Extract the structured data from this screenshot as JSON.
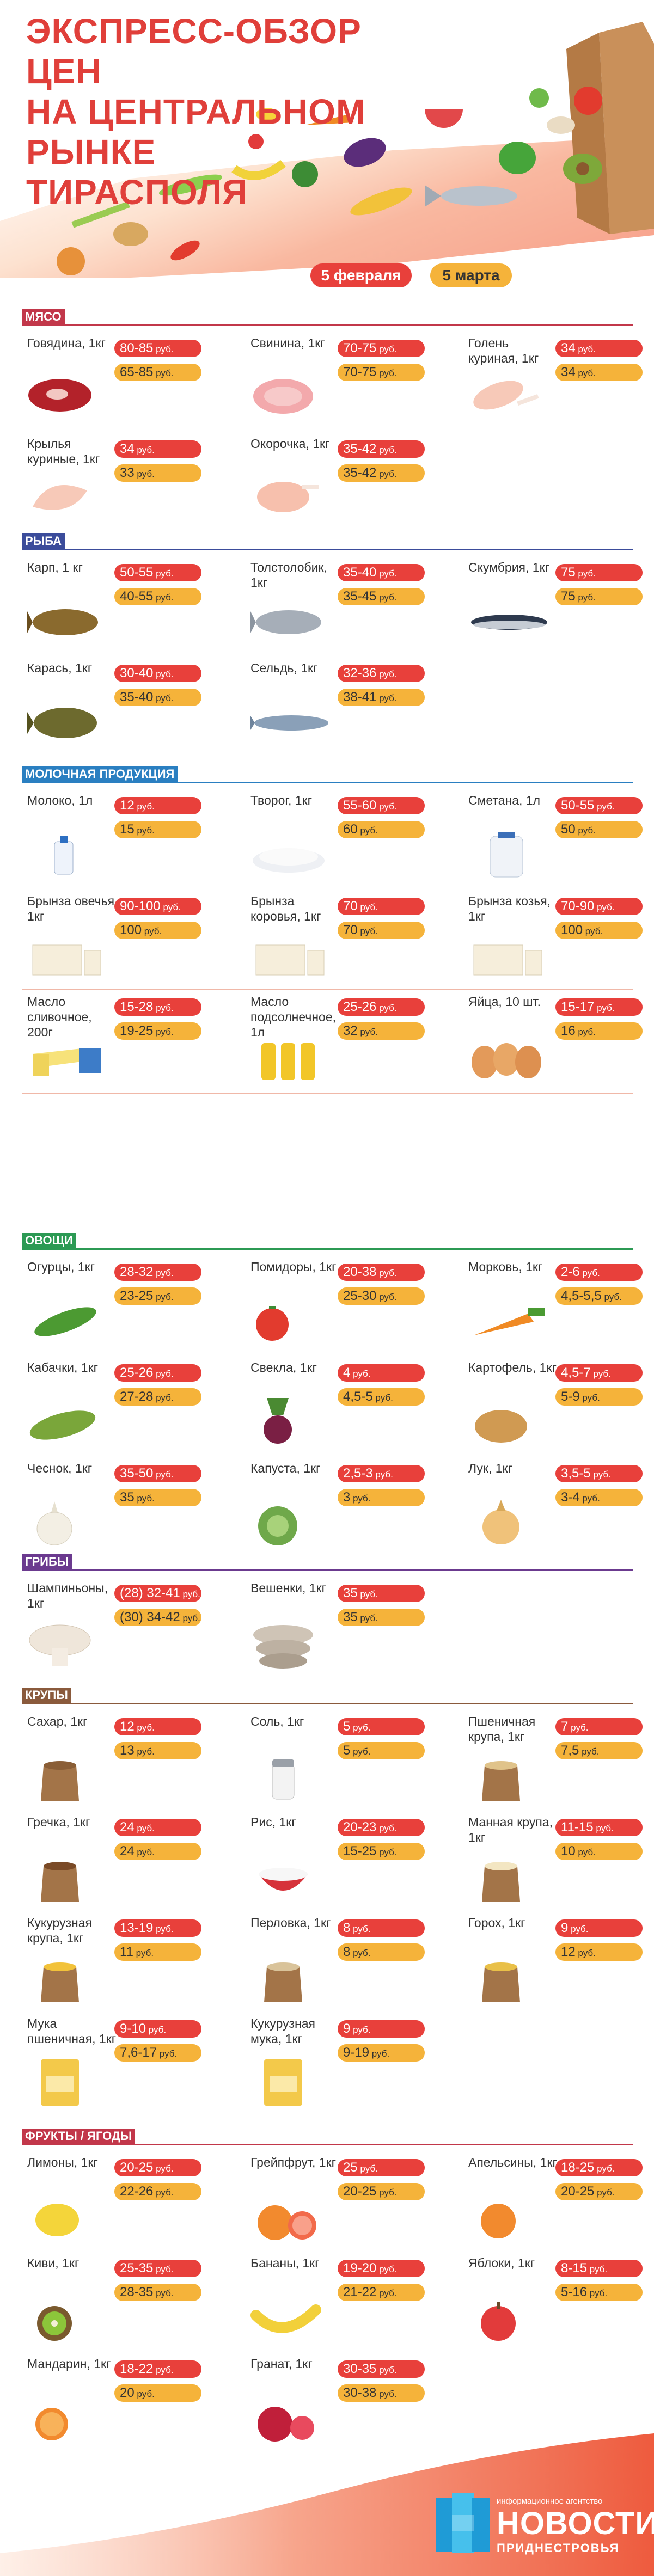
{
  "title": [
    "ЭКСПРЕСС-ОБЗОР ЦЕН",
    "НА ЦЕНТРАЛЬНОМ РЫНКЕ",
    "ТИРАСПОЛЯ"
  ],
  "dates": {
    "current": "5 февраля",
    "previous": "5 марта"
  },
  "colors": {
    "new_price": "#e8403b",
    "old_price": "#f5b33a"
  },
  "sections": [
    {
      "label": "МЯСО",
      "color": "#c2374a",
      "items": [
        {
          "name": "Говядина, 1кг",
          "new": "80-85",
          "old": "65-85",
          "unit": " руб.",
          "icon": "beef-icon"
        },
        {
          "name": "Свинина, 1кг",
          "new": "70-75",
          "old": "70-75",
          "unit": " руб.",
          "icon": "pork-icon"
        },
        {
          "name": "Голень куриная, 1кг",
          "new": "34",
          "old": "34",
          "unit": " руб.",
          "icon": "chicken-leg-icon"
        },
        {
          "name": "Крылья куриные, 1кг",
          "new": "34",
          "old": "33",
          "unit": " руб.",
          "icon": "chicken-wings-icon"
        },
        {
          "name": "Окорочка, 1кг",
          "new": "35-42",
          "old": "35-42",
          "unit": " руб.",
          "icon": "chicken-thigh-icon"
        }
      ]
    },
    {
      "label": "РЫБА",
      "color": "#3b4c9b",
      "items": [
        {
          "name": "Карп, 1 кг",
          "new": "50-55",
          "old": "40-55",
          "unit": " руб.",
          "icon": "carp-icon"
        },
        {
          "name": "Толстолобик, 1кг",
          "new": "35-40",
          "old": "35-45",
          "unit": " руб.",
          "icon": "silver-carp-icon"
        },
        {
          "name": "Скумбрия, 1кг",
          "new": "75",
          "old": "75",
          "unit": " руб.",
          "icon": "mackerel-icon"
        },
        {
          "name": "Карась, 1кг",
          "new": "30-40",
          "old": "35-40",
          "unit": " руб.",
          "icon": "crucian-icon"
        },
        {
          "name": "Сельдь, 1кг",
          "new": "32-36",
          "old": "38-41",
          "unit": " руб.",
          "icon": "herring-icon"
        }
      ]
    },
    {
      "label": "МОЛОЧНАЯ ПРОДУКЦИЯ",
      "color": "#2a7fc1",
      "items": [
        {
          "name": "Молоко, 1л",
          "new": "12",
          "old": "15",
          "unit": " руб.",
          "icon": "milk-icon"
        },
        {
          "name": "Творог, 1кг",
          "new": "55-60",
          "old": "60",
          "unit": " руб.",
          "icon": "cottage-cheese-icon"
        },
        {
          "name": "Сметана, 1л",
          "new": "50-55",
          "old": "50",
          "unit": " руб.",
          "icon": "sour-cream-icon"
        },
        {
          "name": "Брынза овечья, 1кг",
          "new": "90-100",
          "old": "100",
          "unit": " руб.",
          "icon": "sheep-cheese-icon"
        },
        {
          "name": "Брынза коровья, 1кг",
          "new": "70",
          "old": "70",
          "unit": " руб.",
          "icon": "cow-cheese-icon"
        },
        {
          "name": "Брынза козья, 1кг",
          "new": "70-90",
          "old": "100",
          "unit": " руб.",
          "icon": "goat-cheese-icon"
        },
        {
          "name": "Масло сливочное, 200г",
          "new": "15-28",
          "old": "19-25",
          "unit": " руб.",
          "icon": "butter-icon"
        },
        {
          "name": "Масло подсолнечное, 1л",
          "new": "25-26",
          "old": "32",
          "unit": " руб.",
          "icon": "sunflower-oil-icon"
        },
        {
          "name": "Яйца, 10 шт.",
          "new": "15-17",
          "old": "16",
          "unit": " руб.",
          "icon": "eggs-icon"
        }
      ]
    },
    {
      "label": "ОВОЩИ",
      "color": "#2c9a54",
      "items": [
        {
          "name": "Огурцы, 1кг",
          "new": "28-32",
          "old": "23-25",
          "unit": " руб.",
          "icon": "cucumber-icon"
        },
        {
          "name": "Помидоры, 1кг",
          "new": "20-38",
          "old": "25-30",
          "unit": " руб.",
          "icon": "tomato-icon"
        },
        {
          "name": "Морковь, 1кг",
          "new": "2-6",
          "old": "4,5-5,5",
          "unit": " руб.",
          "icon": "carrot-icon"
        },
        {
          "name": "Кабачки, 1кг",
          "new": "25-26",
          "old": "27-28",
          "unit": " руб.",
          "icon": "zucchini-icon"
        },
        {
          "name": "Свекла, 1кг",
          "new": "4",
          "old": "4,5-5",
          "unit": " руб.",
          "icon": "beet-icon"
        },
        {
          "name": "Картофель, 1кг",
          "new": "4,5-7",
          "old": "5-9",
          "unit": " руб.",
          "icon": "potato-icon"
        },
        {
          "name": "Чеснок, 1кг",
          "new": "35-50",
          "old": "35",
          "unit": " руб.",
          "icon": "garlic-icon"
        },
        {
          "name": "Капуста, 1кг",
          "new": "2,5-3",
          "old": "3",
          "unit": " руб.",
          "icon": "cabbage-icon"
        },
        {
          "name": "Лук, 1кг",
          "new": "3,5-5",
          "old": "3-4",
          "unit": " руб.",
          "icon": "onion-icon"
        }
      ]
    },
    {
      "label": "ГРИБЫ",
      "color": "#6b3a8f",
      "items": [
        {
          "name": "Шампиньоны, 1кг",
          "new": "(28) 32-41",
          "old": "(30) 34-42",
          "unit": " руб.",
          "icon": "champignon-icon"
        },
        {
          "name": "Вешенки, 1кг",
          "new": "35",
          "old": "35",
          "unit": " руб.",
          "icon": "oyster-mushroom-icon"
        }
      ]
    },
    {
      "label": "КРУПЫ",
      "color": "#8a5a3c",
      "items": [
        {
          "name": "Сахар, 1кг",
          "new": "12",
          "old": "13",
          "unit": " руб.",
          "icon": "sugar-icon"
        },
        {
          "name": "Соль, 1кг",
          "new": "5",
          "old": "5",
          "unit": " руб.",
          "icon": "salt-icon"
        },
        {
          "name": "Пшеничная крупа, 1кг",
          "new": "7",
          "old": "7,5",
          "unit": " руб.",
          "icon": "wheat-groats-icon"
        },
        {
          "name": "Гречка, 1кг",
          "new": "24",
          "old": "24",
          "unit": " руб.",
          "icon": "buckwheat-icon"
        },
        {
          "name": "Рис, 1кг",
          "new": "20-23",
          "old": "15-25",
          "unit": " руб.",
          "icon": "rice-icon"
        },
        {
          "name": "Манная крупа, 1кг",
          "new": "11-15",
          "old": "10",
          "unit": " руб.",
          "icon": "semolina-icon"
        },
        {
          "name": "Кукурузная крупа, 1кг",
          "new": "13-19",
          "old": "11",
          "unit": " руб.",
          "icon": "corn-groats-icon"
        },
        {
          "name": "Перловка, 1кг",
          "new": "8",
          "old": "8",
          "unit": " руб.",
          "icon": "barley-icon"
        },
        {
          "name": "Горох, 1кг",
          "new": "9",
          "old": "12",
          "unit": " руб.",
          "icon": "peas-icon"
        },
        {
          "name": "Мука пшеничная, 1кг",
          "new": "9-10",
          "old": "7,6-17",
          "unit": " руб.",
          "icon": "wheat-flour-icon"
        },
        {
          "name": "Кукурузная мука, 1кг",
          "new": "9",
          "old": "9-19",
          "unit": " руб.",
          "icon": "corn-flour-icon"
        }
      ]
    },
    {
      "label": "ФРУКТЫ / ЯГОДЫ",
      "color": "#c2374a",
      "items": [
        {
          "name": "Лимоны, 1кг",
          "new": "20-25",
          "old": "22-26",
          "unit": " руб.",
          "icon": "lemon-icon"
        },
        {
          "name": "Грейпфрут, 1кг",
          "new": "25",
          "old": "20-25",
          "unit": " руб.",
          "icon": "grapefruit-icon"
        },
        {
          "name": "Апельсины, 1кг",
          "new": "18-25",
          "old": "20-25",
          "unit": " руб.",
          "icon": "orange-icon"
        },
        {
          "name": "Киви, 1кг",
          "new": "25-35",
          "old": "28-35",
          "unit": " руб.",
          "icon": "kiwi-icon"
        },
        {
          "name": "Бананы, 1кг",
          "new": "19-20",
          "old": "21-22",
          "unit": " руб.",
          "icon": "banana-icon"
        },
        {
          "name": "Яблоки, 1кг",
          "new": "8-15",
          "old": "5-16",
          "unit": " руб.",
          "icon": "apple-icon"
        },
        {
          "name": "Мандарин, 1кг",
          "new": "18-22",
          "old": "20",
          "unit": " руб.",
          "icon": "mandarin-icon"
        },
        {
          "name": "Гранат, 1кг",
          "new": "30-35",
          "old": "30-38",
          "unit": " руб.",
          "icon": "pomegranate-icon"
        }
      ]
    }
  ],
  "logo": {
    "small": "информационное агентство",
    "big": "НОВОСТИ",
    "sub": "ПРИДНЕСТРОВЬЯ"
  }
}
